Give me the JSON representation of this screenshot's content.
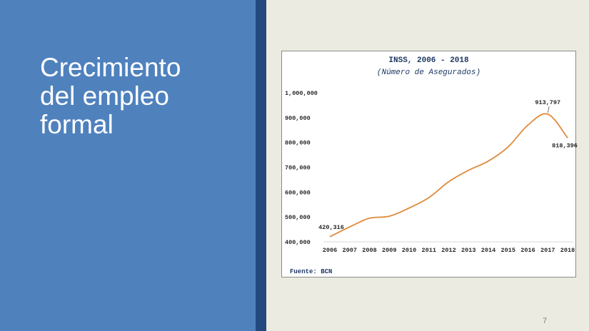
{
  "slide": {
    "title_lines": [
      "Crecimiento",
      "del empleo",
      "formal"
    ],
    "page_number": "7",
    "colors": {
      "left_panel": "#4f81bd",
      "divider": "#234a7e",
      "background": "#ecebe1"
    }
  },
  "chart_data": {
    "type": "line",
    "title": "INSS, 2006 - 2018",
    "subtitle": "(Número de Asegurados)",
    "source": "Fuente: BCN",
    "categories": [
      "2006",
      "2007",
      "2008",
      "2009",
      "2010",
      "2011",
      "2012",
      "2013",
      "2014",
      "2015",
      "2016",
      "2017",
      "2018"
    ],
    "series": [
      {
        "name": "",
        "color": "#e08a3c",
        "values": [
          420316,
          460000,
          495000,
          503000,
          536000,
          578000,
          642000,
          688000,
          725000,
          782000,
          870000,
          913797,
          818396
        ]
      }
    ],
    "ylim": [
      400000,
      1000000
    ],
    "yticks": [
      400000,
      500000,
      600000,
      700000,
      800000,
      900000,
      1000000
    ],
    "ytick_labels": [
      "400,000",
      "500,000",
      "600,000",
      "700,000",
      "800,000",
      "900,000",
      "1,000,000"
    ],
    "data_labels": [
      {
        "index": 0,
        "text": "420,316"
      },
      {
        "index": 11,
        "text": "913,797"
      },
      {
        "index": 12,
        "text": "818,396"
      }
    ],
    "grid": false,
    "legend": "none"
  }
}
